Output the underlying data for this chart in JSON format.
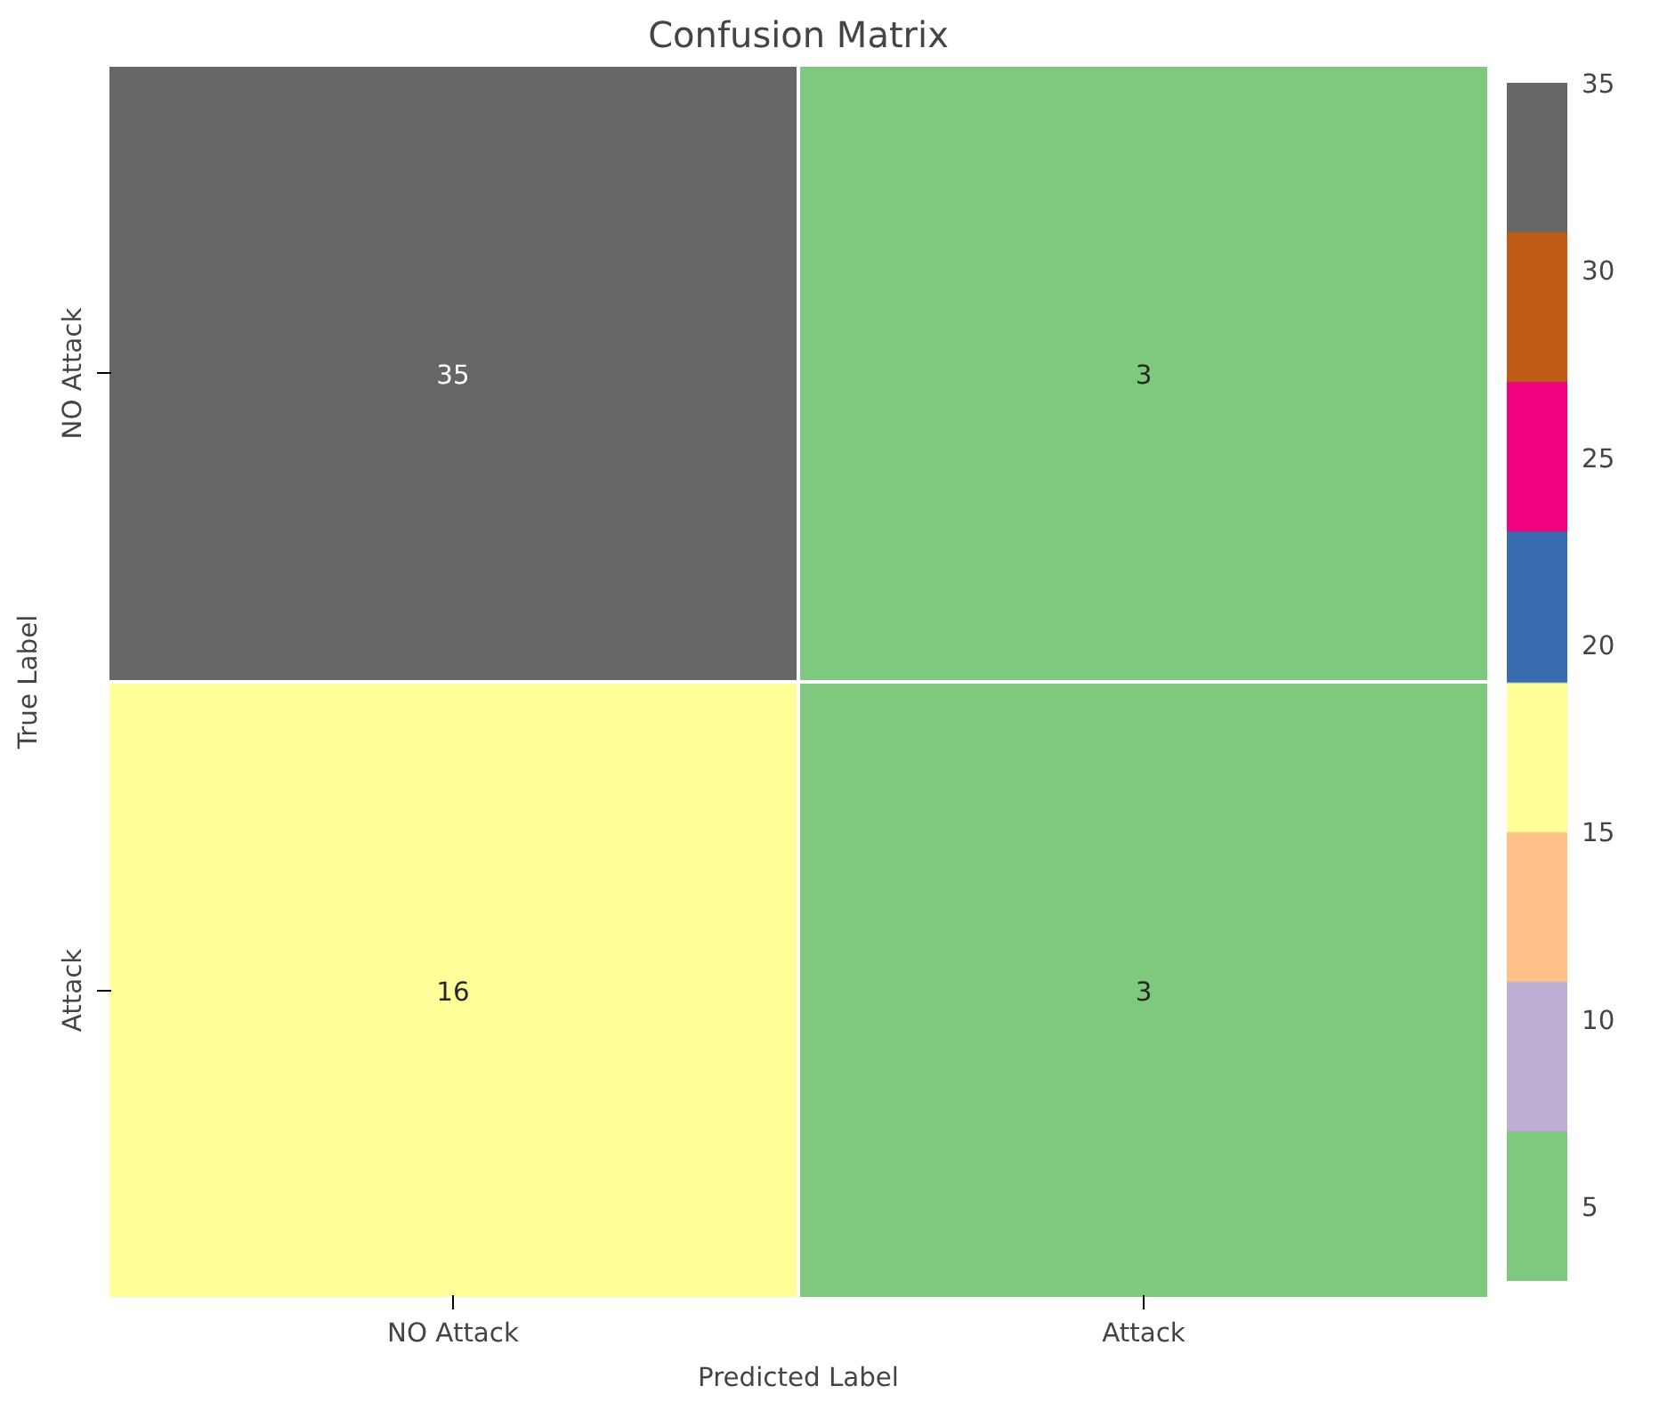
{
  "chart_data": {
    "type": "heatmap",
    "title": "Confusion Matrix",
    "xlabel": "Predicted Label",
    "ylabel": "True Label",
    "categories": [
      "NO Attack",
      "Attack"
    ],
    "y_categories": [
      "NO Attack",
      "Attack"
    ],
    "cells": [
      [
        35,
        3
      ],
      [
        16,
        3
      ]
    ],
    "clim": [
      3,
      35
    ],
    "cticks": [
      5,
      10,
      15,
      20,
      25,
      30,
      35
    ],
    "colors": [
      "#7fc97f",
      "#beaed4",
      "#fdc086",
      "#ffff99",
      "#386cb0",
      "#f0027f",
      "#bf5b17",
      "#666666"
    ],
    "data_labels": true
  }
}
